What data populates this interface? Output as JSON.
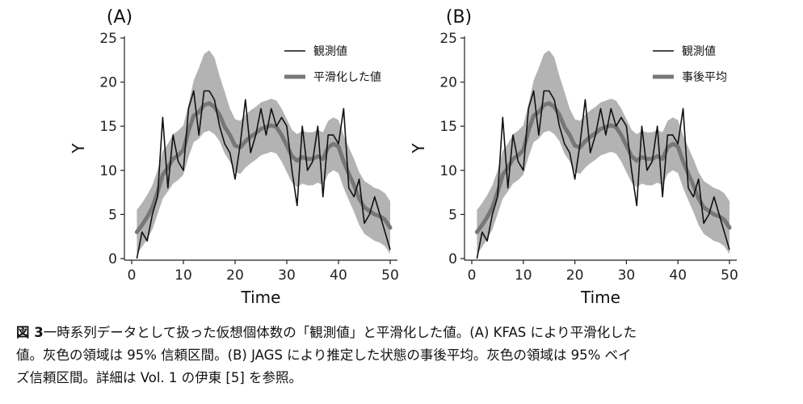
{
  "chart_data": [
    {
      "type": "line",
      "panel_label": "(A)",
      "xlabel": "Time",
      "ylabel": "Y",
      "xlim": [
        0,
        50
      ],
      "ylim": [
        0,
        25
      ],
      "xticks": [
        0,
        10,
        20,
        30,
        40,
        50
      ],
      "yticks": [
        0,
        5,
        10,
        15,
        20,
        25
      ],
      "grid": false,
      "legend": "top-right",
      "x": [
        1,
        2,
        3,
        4,
        5,
        6,
        7,
        8,
        9,
        10,
        11,
        12,
        13,
        14,
        15,
        16,
        17,
        18,
        19,
        20,
        21,
        22,
        23,
        24,
        25,
        26,
        27,
        28,
        29,
        30,
        31,
        32,
        33,
        34,
        35,
        36,
        37,
        38,
        39,
        40,
        41,
        42,
        43,
        44,
        45,
        46,
        47,
        48,
        49,
        50
      ],
      "series": [
        {
          "name": "観測値",
          "style": "thin-black-line",
          "values": [
            0,
            3,
            2,
            5,
            7,
            16,
            8,
            14,
            11,
            10,
            17,
            19,
            14,
            19,
            19,
            18,
            15,
            13,
            12,
            9,
            13,
            18,
            12,
            14,
            17,
            14,
            17,
            15,
            16,
            15,
            10,
            6,
            15,
            10,
            11,
            15,
            7,
            14,
            14,
            13,
            17,
            8,
            7,
            9,
            4,
            5,
            7,
            5,
            3,
            1
          ]
        },
        {
          "name": "平滑化した値",
          "style": "thick-gray-line",
          "values": [
            3,
            3.8,
            4.7,
            5.8,
            7.5,
            9.5,
            10.3,
            11.3,
            11.7,
            12.3,
            14.5,
            16.2,
            16.6,
            17.4,
            17.6,
            17.2,
            16.3,
            14.9,
            14,
            12.8,
            12.6,
            13.3,
            13.8,
            14.2,
            14.7,
            14.9,
            15.1,
            14.9,
            14,
            12.8,
            11.6,
            11.1,
            11.5,
            11.3,
            11.3,
            11.6,
            11.3,
            12.6,
            13,
            12.7,
            11,
            9.6,
            8.3,
            6.8,
            5.8,
            5.4,
            5,
            4.8,
            4.4,
            3.5
          ]
        },
        {
          "name": "95% 信頼区間",
          "style": "gray-band",
          "lower": [
            0.5,
            1.3,
            2.2,
            3.3,
            5,
            6.8,
            7.6,
            8.5,
            8.9,
            9.5,
            11.5,
            13.2,
            13.6,
            14.3,
            14.5,
            14.1,
            13.3,
            11.9,
            11,
            9.8,
            9.6,
            10.3,
            10.8,
            11.2,
            11.7,
            11.9,
            12.1,
            11.9,
            11,
            9.8,
            8.6,
            8.1,
            8.5,
            8.3,
            8.3,
            8.6,
            8.3,
            9.6,
            10,
            9.7,
            8,
            6.6,
            5.3,
            3.8,
            2.8,
            2.4,
            2,
            1.8,
            1.4,
            0.5
          ],
          "upper": [
            5.5,
            6.3,
            7.2,
            8.3,
            10,
            12.2,
            13,
            14.1,
            14.5,
            15.1,
            17.5,
            20.2,
            21.6,
            23.2,
            23.6,
            22.8,
            20.7,
            18.9,
            17,
            15.8,
            15.6,
            16.3,
            16.8,
            17.2,
            17.7,
            17.9,
            18.1,
            17.9,
            17,
            15.8,
            14.6,
            14.1,
            14.5,
            14.3,
            14.3,
            14.6,
            14.3,
            15.6,
            16,
            15.7,
            14,
            12.6,
            11.3,
            9.8,
            8.8,
            8.4,
            8,
            7.8,
            7.4,
            6.5
          ]
        }
      ],
      "legend_entries": [
        "観測値",
        "平滑化した値"
      ]
    },
    {
      "type": "line",
      "panel_label": "(B)",
      "xlabel": "Time",
      "ylabel": "Y",
      "xlim": [
        0,
        50
      ],
      "ylim": [
        0,
        25
      ],
      "xticks": [
        0,
        10,
        20,
        30,
        40,
        50
      ],
      "yticks": [
        0,
        5,
        10,
        15,
        20,
        25
      ],
      "grid": false,
      "legend": "top-right",
      "x": [
        1,
        2,
        3,
        4,
        5,
        6,
        7,
        8,
        9,
        10,
        11,
        12,
        13,
        14,
        15,
        16,
        17,
        18,
        19,
        20,
        21,
        22,
        23,
        24,
        25,
        26,
        27,
        28,
        29,
        30,
        31,
        32,
        33,
        34,
        35,
        36,
        37,
        38,
        39,
        40,
        41,
        42,
        43,
        44,
        45,
        46,
        47,
        48,
        49,
        50
      ],
      "series": [
        {
          "name": "観測値",
          "style": "thin-black-line",
          "values": [
            0,
            3,
            2,
            5,
            7,
            16,
            8,
            14,
            11,
            10,
            17,
            19,
            14,
            19,
            19,
            18,
            15,
            13,
            12,
            9,
            13,
            18,
            12,
            14,
            17,
            14,
            17,
            15,
            16,
            15,
            10,
            6,
            15,
            10,
            11,
            15,
            7,
            14,
            14,
            13,
            17,
            8,
            7,
            9,
            4,
            5,
            7,
            5,
            3,
            1
          ]
        },
        {
          "name": "事後平均",
          "style": "thick-gray-line",
          "values": [
            3,
            3.8,
            4.7,
            5.8,
            7.5,
            9.5,
            10.3,
            11.3,
            11.7,
            12.3,
            14.5,
            16.2,
            16.6,
            17.4,
            17.6,
            17.2,
            16.3,
            14.9,
            14,
            12.8,
            12.6,
            13.3,
            13.8,
            14.2,
            14.7,
            14.9,
            15.1,
            14.9,
            14,
            12.8,
            11.6,
            11.1,
            11.5,
            11.3,
            11.3,
            11.6,
            11.3,
            12.6,
            13,
            12.7,
            11,
            9.6,
            8.3,
            6.8,
            5.8,
            5.4,
            5,
            4.8,
            4.4,
            3.5
          ]
        },
        {
          "name": "95% ベイズ信頼区間",
          "style": "gray-band",
          "lower": [
            0.5,
            1.3,
            2.2,
            3.3,
            5,
            6.8,
            7.6,
            8.5,
            8.9,
            9.5,
            11.5,
            13.2,
            13.6,
            14.3,
            14.5,
            14.1,
            13.3,
            11.9,
            11,
            9.8,
            9.6,
            10.3,
            10.8,
            11.2,
            11.7,
            11.9,
            12.1,
            11.9,
            11,
            9.8,
            8.6,
            8.1,
            8.5,
            8.3,
            8.3,
            8.6,
            8.3,
            9.6,
            10,
            9.7,
            8,
            6.6,
            5.3,
            3.8,
            2.8,
            2.4,
            2,
            1.8,
            1.4,
            0.5
          ],
          "upper": [
            5.5,
            6.3,
            7.2,
            8.3,
            10,
            12.2,
            13,
            14.1,
            14.5,
            15.1,
            17.5,
            20.2,
            21.6,
            23.2,
            23.6,
            22.8,
            20.7,
            18.9,
            17,
            15.8,
            15.6,
            16.3,
            16.8,
            17.2,
            17.7,
            17.9,
            18.1,
            17.9,
            17,
            15.8,
            14.6,
            14.1,
            14.5,
            14.3,
            14.3,
            14.6,
            14.3,
            15.6,
            16,
            15.7,
            14,
            12.6,
            11.3,
            9.8,
            8.8,
            8.4,
            8,
            7.8,
            7.4,
            6.5
          ]
        }
      ],
      "legend_entries": [
        "観測値",
        "事後平均"
      ]
    }
  ],
  "colors": {
    "observed": "#111111",
    "smoothed": "#777777",
    "band": "#b3b3b3",
    "axis": "#222222"
  },
  "caption": {
    "figure_label": "図 3",
    "line1": "一時系列データとして扱った仮想個体数の「観測値」と平滑化した値。(A) KFAS により平滑化した",
    "line2": "値。灰色の領域は 95% 信頼区間。(B) JAGS により推定した状態の事後平均。灰色の領域は 95% ベイ",
    "line3": "ズ信頼区間。詳細は Vol. 1 の伊東 [5] を参照。"
  }
}
